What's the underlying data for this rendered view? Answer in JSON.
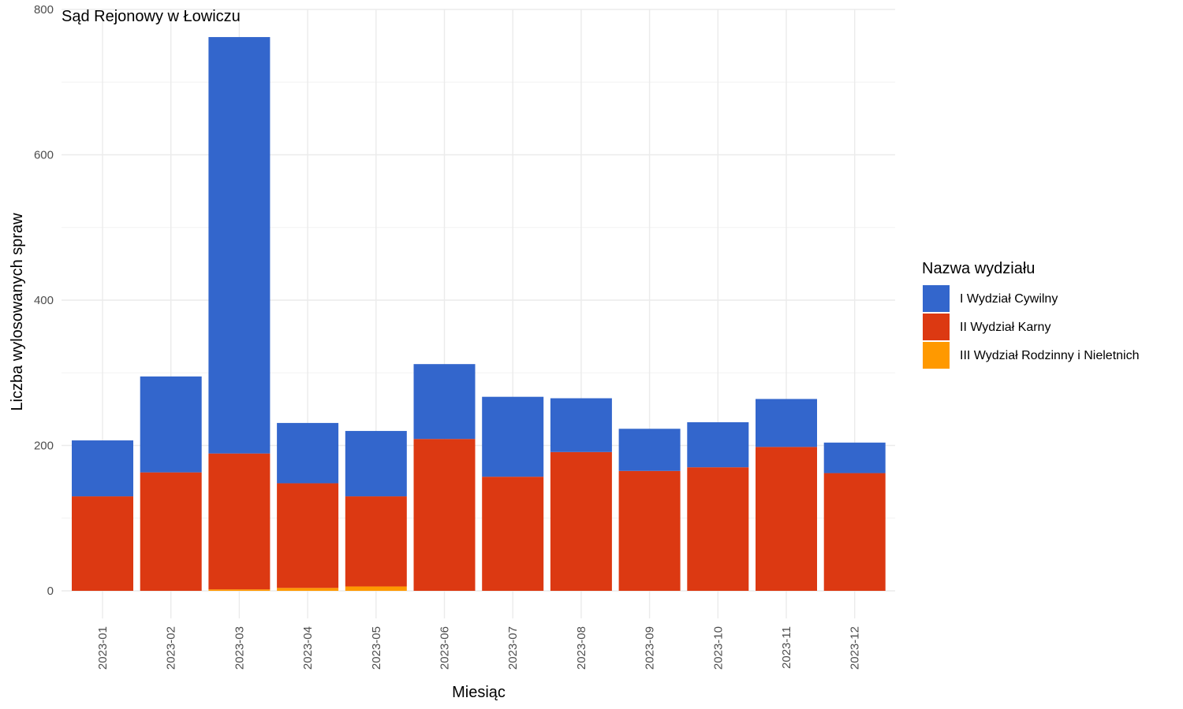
{
  "chart_data": {
    "type": "bar",
    "stacked": true,
    "title": "Sąd Rejonowy w Łowiczu",
    "xlabel": "Miesiąc",
    "ylabel": "Liczba wylosowanych spraw",
    "ylim": [
      0,
      800
    ],
    "yticks": [
      0,
      200,
      400,
      600,
      800
    ],
    "grid": true,
    "legend": {
      "title": "Nazwa wydziału",
      "placement": "right"
    },
    "categories": [
      "2023-01",
      "2023-02",
      "2023-03",
      "2023-04",
      "2023-05",
      "2023-06",
      "2023-07",
      "2023-08",
      "2023-09",
      "2023-10",
      "2023-11",
      "2023-12"
    ],
    "series": [
      {
        "name": "III Wydział Rodzinny i Nieletnich",
        "color": "#FF9900",
        "values": [
          0,
          0,
          2,
          4,
          6,
          0,
          0,
          0,
          0,
          0,
          0,
          0
        ]
      },
      {
        "name": "II Wydział Karny",
        "color": "#DC3912",
        "values": [
          130,
          163,
          187,
          144,
          124,
          209,
          157,
          191,
          165,
          170,
          198,
          162
        ]
      },
      {
        "name": "I Wydział Cywilny",
        "color": "#3366CC",
        "values": [
          77,
          132,
          573,
          83,
          90,
          103,
          110,
          74,
          58,
          62,
          66,
          42
        ]
      }
    ]
  }
}
